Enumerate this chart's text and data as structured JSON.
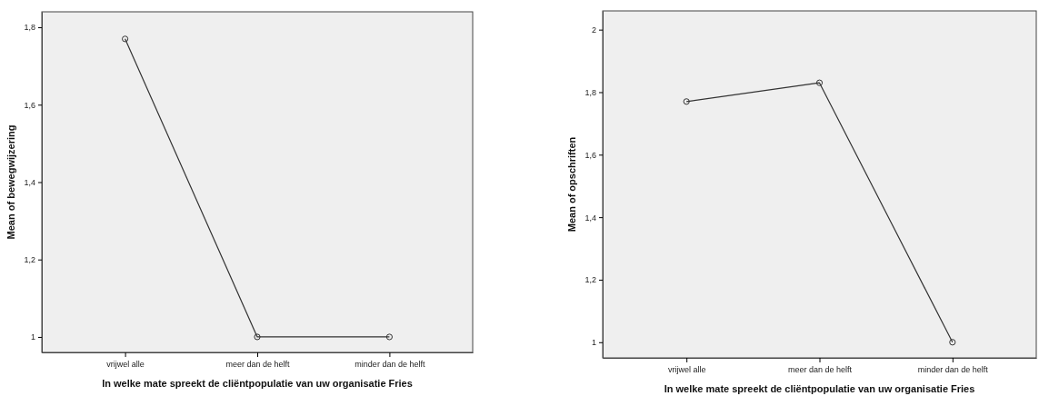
{
  "chart_data": [
    {
      "type": "line",
      "xlabel": "In welke mate spreekt de cliëntpopulatie van uw organisatie Fries",
      "ylabel": "Mean of bewegwijzering",
      "categories": [
        "vrijwel alle",
        "meer dan de helft",
        "minder dan de helft"
      ],
      "series": [
        {
          "color": "#333333",
          "values": [
            1.77,
            1.0,
            1.0
          ]
        }
      ],
      "ylim": [
        0.96,
        1.84
      ],
      "yticks": [
        {
          "value": 1,
          "label": "1"
        },
        {
          "value": 1.2,
          "label": "1,2"
        },
        {
          "value": 1.4,
          "label": "1,4"
        },
        {
          "value": 1.6,
          "label": "1,6"
        },
        {
          "value": 1.8,
          "label": "1,8"
        }
      ],
      "marker": "circle",
      "grid": false
    },
    {
      "type": "line",
      "xlabel": "In welke mate spreekt de cliëntpopulatie van uw organisatie Fries",
      "ylabel": "Mean of opschriften",
      "categories": [
        "vrijwel alle",
        "meer dan de helft",
        "minder dan de helft"
      ],
      "series": [
        {
          "color": "#333333",
          "values": [
            1.77,
            1.83,
            1.0
          ]
        }
      ],
      "ylim": [
        0.95,
        2.06
      ],
      "yticks": [
        {
          "value": 1,
          "label": "1"
        },
        {
          "value": 1.2,
          "label": "1,2"
        },
        {
          "value": 1.4,
          "label": "1,4"
        },
        {
          "value": 1.6,
          "label": "1,6"
        },
        {
          "value": 1.8,
          "label": "1,8"
        },
        {
          "value": 2,
          "label": "2"
        }
      ],
      "marker": "circle",
      "grid": false
    }
  ]
}
